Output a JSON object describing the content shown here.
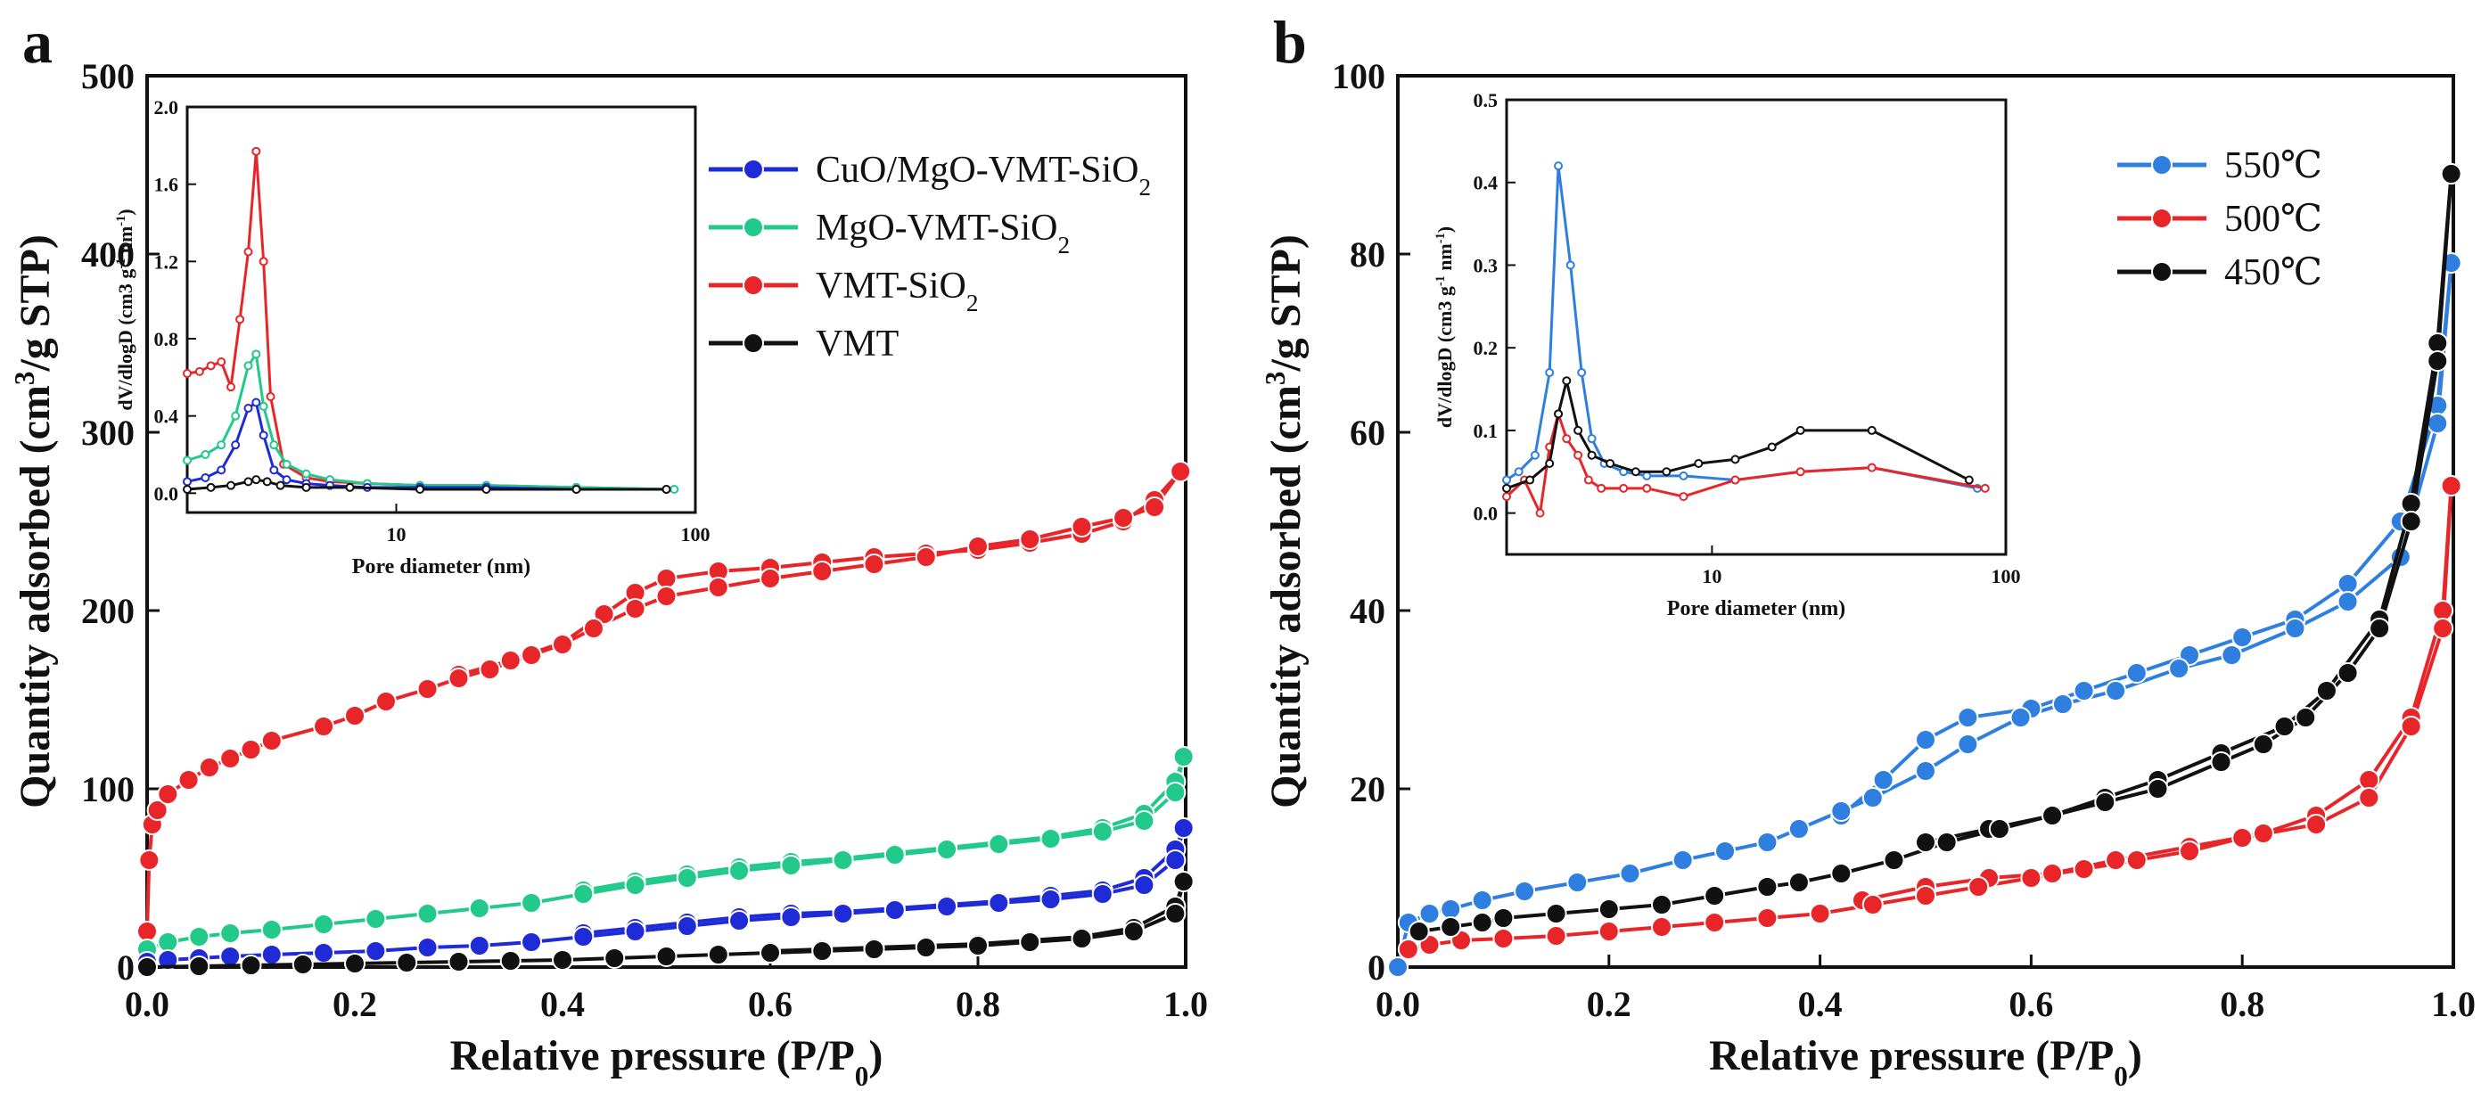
{
  "chart_data": [
    {
      "panel_label": "a",
      "type": "line",
      "xlabel": "Relative pressure (P/P",
      "xlabel_sub": "0",
      "xlabel_end": ")",
      "ylabel": "Quantity adsorbed (cm",
      "ylabel_sup": "3",
      "ylabel_end": "/g STP)",
      "xlim": [
        0,
        1.0
      ],
      "ylim": [
        0,
        500
      ],
      "xticks": [
        "0.0",
        "0.2",
        "0.4",
        "0.6",
        "0.8",
        "1.0"
      ],
      "yticks": [
        "0",
        "100",
        "200",
        "300",
        "400",
        "500"
      ],
      "legend": [
        {
          "label": "CuO/MgO-VMT-SiO",
          "sub": "2",
          "color": "#1f2bd6"
        },
        {
          "label": "MgO-VMT-SiO",
          "sub": "2",
          "color": "#21c98a"
        },
        {
          "label": "VMT-SiO",
          "sub": "2",
          "color": "#e8262a"
        },
        {
          "label": "VMT",
          "sub": "",
          "color": "#111111"
        }
      ],
      "series": [
        {
          "name": "VMT-SiO2",
          "color": "#e8262a",
          "x": [
            0,
            0.002,
            0.005,
            0.01,
            0.02,
            0.04,
            0.06,
            0.08,
            0.1,
            0.12,
            0.17,
            0.2,
            0.23,
            0.27,
            0.3,
            0.33,
            0.37,
            0.4,
            0.43,
            0.47,
            0.5,
            0.55,
            0.6,
            0.65,
            0.7,
            0.75,
            0.8,
            0.85,
            0.9,
            0.94,
            0.97,
            0.995
          ],
          "y": [
            20,
            60,
            80,
            88,
            97,
            105,
            112,
            117,
            122,
            127,
            135,
            141,
            149,
            156,
            162,
            167,
            175,
            181,
            190,
            201,
            208,
            213,
            218,
            222,
            226,
            230,
            236,
            240,
            247,
            252,
            258,
            278
          ],
          "x2": [
            0.995,
            0.97,
            0.94,
            0.9,
            0.85,
            0.8,
            0.75,
            0.7,
            0.65,
            0.6,
            0.55,
            0.5,
            0.47,
            0.44,
            0.4,
            0.35,
            0.3
          ],
          "y2": [
            278,
            262,
            250,
            243,
            238,
            234,
            232,
            230,
            227,
            224,
            222,
            218,
            210,
            198,
            182,
            172,
            164
          ]
        },
        {
          "name": "MgO-VMT-SiO2",
          "color": "#21c98a",
          "x": [
            0,
            0.02,
            0.05,
            0.08,
            0.12,
            0.17,
            0.22,
            0.27,
            0.32,
            0.37,
            0.42,
            0.47,
            0.52,
            0.57,
            0.62,
            0.67,
            0.72,
            0.77,
            0.82,
            0.87,
            0.92,
            0.96,
            0.99,
            0.998
          ],
          "y": [
            10,
            14,
            17,
            19,
            21,
            24,
            27,
            30,
            33,
            36,
            41,
            46,
            50,
            54,
            57,
            60,
            63,
            66,
            69,
            72,
            76,
            82,
            98,
            118
          ],
          "x2": [
            0.998,
            0.99,
            0.96,
            0.92,
            0.87,
            0.82,
            0.77,
            0.72,
            0.67,
            0.62,
            0.57,
            0.52,
            0.47,
            0.42
          ],
          "y2": [
            118,
            104,
            86,
            78,
            73,
            70,
            67,
            64,
            61,
            59,
            56,
            52,
            48,
            43
          ]
        },
        {
          "name": "CuO/MgO-VMT-SiO2",
          "color": "#1f2bd6",
          "x": [
            0,
            0.02,
            0.05,
            0.08,
            0.12,
            0.17,
            0.22,
            0.27,
            0.32,
            0.37,
            0.42,
            0.47,
            0.52,
            0.57,
            0.62,
            0.67,
            0.72,
            0.77,
            0.82,
            0.87,
            0.92,
            0.96,
            0.99,
            0.998
          ],
          "y": [
            3,
            4,
            5,
            6,
            7,
            8,
            9,
            11,
            12,
            14,
            17,
            20,
            23,
            26,
            28,
            30,
            32,
            34,
            36,
            38,
            41,
            46,
            60,
            78
          ],
          "x2": [
            0.998,
            0.99,
            0.96,
            0.92,
            0.87,
            0.82,
            0.77,
            0.72,
            0.67,
            0.62,
            0.57,
            0.52,
            0.47,
            0.42
          ],
          "y2": [
            78,
            66,
            50,
            43,
            40,
            37,
            35,
            33,
            31,
            30,
            28,
            25,
            22,
            19
          ]
        },
        {
          "name": "VMT",
          "color": "#111111",
          "x": [
            0,
            0.05,
            0.1,
            0.15,
            0.2,
            0.25,
            0.3,
            0.35,
            0.4,
            0.45,
            0.5,
            0.55,
            0.6,
            0.65,
            0.7,
            0.75,
            0.8,
            0.85,
            0.9,
            0.95,
            0.99,
            0.998
          ],
          "y": [
            0,
            0.5,
            1,
            1.5,
            2,
            2.5,
            3,
            3.5,
            4,
            5,
            6,
            7,
            8,
            9,
            10,
            11,
            12,
            14,
            16,
            20,
            30,
            48
          ],
          "x2": [
            0.998,
            0.99,
            0.95,
            0.9,
            0.85,
            0.8,
            0.75,
            0.7,
            0.65,
            0.6
          ],
          "y2": [
            48,
            34,
            22,
            17,
            15,
            13,
            12,
            11,
            10,
            9
          ]
        }
      ],
      "inset": {
        "xlabel": "Pore diameter (nm)",
        "ylabel": "dV/dlogD (cm3 g",
        "ylabel_sup": "-1",
        "ylabel_mid": " nm",
        "ylabel_sup2": "-1",
        "ylabel_end": ")",
        "xscale": "log",
        "xlim": [
          2,
          100
        ],
        "ylim": [
          -0.1,
          2.0
        ],
        "xticks": [
          "10",
          "100"
        ],
        "yticks": [
          "0.0",
          "0.4",
          "0.8",
          "1.2",
          "1.6",
          "2.0"
        ],
        "series": [
          {
            "name": "VMT-SiO2",
            "color": "#e8262a",
            "x": [
              2,
              2.2,
              2.4,
              2.6,
              2.8,
              3.0,
              3.2,
              3.4,
              3.6,
              3.8,
              4.2,
              5,
              6,
              8,
              12,
              20,
              40,
              80
            ],
            "y": [
              0.62,
              0.63,
              0.66,
              0.68,
              0.55,
              0.9,
              1.25,
              1.77,
              1.2,
              0.5,
              0.15,
              0.08,
              0.06,
              0.05,
              0.04,
              0.04,
              0.03,
              0.02
            ]
          },
          {
            "name": "MgO-VMT-SiO2",
            "color": "#21c98a",
            "x": [
              2,
              2.3,
              2.6,
              2.9,
              3.2,
              3.4,
              3.6,
              3.9,
              4.3,
              5,
              6,
              8,
              12,
              20,
              40,
              85
            ],
            "y": [
              0.17,
              0.2,
              0.25,
              0.4,
              0.66,
              0.72,
              0.45,
              0.25,
              0.15,
              0.1,
              0.07,
              0.05,
              0.04,
              0.04,
              0.03,
              0.02
            ]
          },
          {
            "name": "CuO/MgO-VMT-SiO2",
            "color": "#1f2bd6",
            "x": [
              2,
              2.3,
              2.6,
              2.9,
              3.2,
              3.4,
              3.6,
              3.9,
              4.3,
              5,
              6,
              8,
              12,
              20,
              40,
              80
            ],
            "y": [
              0.06,
              0.08,
              0.12,
              0.25,
              0.44,
              0.47,
              0.3,
              0.12,
              0.07,
              0.05,
              0.04,
              0.03,
              0.03,
              0.03,
              0.02,
              0.02
            ]
          },
          {
            "name": "VMT",
            "color": "#111111",
            "x": [
              2,
              2.4,
              2.8,
              3.2,
              3.4,
              3.7,
              4.1,
              5,
              7,
              12,
              20,
              40,
              80
            ],
            "y": [
              0.02,
              0.03,
              0.04,
              0.06,
              0.07,
              0.06,
              0.04,
              0.03,
              0.03,
              0.02,
              0.02,
              0.02,
              0.02
            ]
          }
        ]
      }
    },
    {
      "panel_label": "b",
      "type": "line",
      "xlabel": "Relative pressure (P/P",
      "xlabel_sub": "0",
      "xlabel_end": ")",
      "ylabel": "Quantity adsorbed (cm",
      "ylabel_sup": "3",
      "ylabel_end": "/g STP)",
      "xlim": [
        0,
        1.0
      ],
      "ylim": [
        0,
        100
      ],
      "xticks": [
        "0.0",
        "0.2",
        "0.4",
        "0.6",
        "0.8",
        "1.0"
      ],
      "yticks": [
        "0",
        "20",
        "40",
        "60",
        "80",
        "100"
      ],
      "legend": [
        {
          "label": "550℃",
          "sub": "",
          "color": "#2f7fe0"
        },
        {
          "label": "500℃",
          "sub": "",
          "color": "#e8262a"
        },
        {
          "label": "450℃",
          "sub": "",
          "color": "#111111"
        }
      ],
      "series": [
        {
          "name": "550℃",
          "color": "#2f7fe0",
          "x": [
            0,
            0.01,
            0.03,
            0.05,
            0.08,
            0.12,
            0.17,
            0.22,
            0.27,
            0.31,
            0.35,
            0.38,
            0.42,
            0.45,
            0.5,
            0.54,
            0.59,
            0.63,
            0.68,
            0.74,
            0.79,
            0.85,
            0.9,
            0.95,
            0.985,
            0.998
          ],
          "y": [
            0,
            5,
            6,
            6.5,
            7.5,
            8.5,
            9.5,
            10.5,
            12,
            13,
            14,
            15.5,
            17.5,
            19,
            22,
            25,
            28,
            29.5,
            31,
            33.5,
            35,
            38,
            41,
            46,
            61,
            79
          ],
          "x2": [
            0.998,
            0.985,
            0.95,
            0.9,
            0.85,
            0.8,
            0.75,
            0.7,
            0.65,
            0.6,
            0.54,
            0.5,
            0.46,
            0.42
          ],
          "y2": [
            79,
            63,
            50,
            43,
            39,
            37,
            35,
            33,
            31,
            29,
            28,
            25.5,
            21,
            17
          ]
        },
        {
          "name": "500℃",
          "color": "#e8262a",
          "x": [
            0.01,
            0.03,
            0.06,
            0.1,
            0.15,
            0.2,
            0.25,
            0.3,
            0.35,
            0.4,
            0.45,
            0.5,
            0.55,
            0.6,
            0.65,
            0.7,
            0.75,
            0.8,
            0.87,
            0.92,
            0.96,
            0.99,
            0.998
          ],
          "y": [
            2,
            2.5,
            3,
            3.2,
            3.5,
            4,
            4.5,
            5,
            5.5,
            6,
            7,
            8,
            9,
            10,
            11,
            12,
            13,
            14.5,
            16,
            19,
            27,
            38,
            54
          ],
          "x2": [
            0.998,
            0.99,
            0.96,
            0.92,
            0.87,
            0.82,
            0.75,
            0.68,
            0.62,
            0.56,
            0.5,
            0.44
          ],
          "y2": [
            54,
            40,
            28,
            21,
            17,
            15,
            13.5,
            12,
            10.5,
            10,
            9,
            7.5
          ]
        },
        {
          "name": "450℃",
          "color": "#111111",
          "x": [
            0.02,
            0.05,
            0.08,
            0.1,
            0.15,
            0.2,
            0.25,
            0.3,
            0.35,
            0.38,
            0.42,
            0.47,
            0.52,
            0.57,
            0.62,
            0.67,
            0.72,
            0.78,
            0.82,
            0.86,
            0.9,
            0.93,
            0.96,
            0.985,
            0.998
          ],
          "y": [
            4,
            4.5,
            5,
            5.5,
            6,
            6.5,
            7,
            8,
            9,
            9.5,
            10.5,
            12,
            14,
            15.5,
            17,
            18.5,
            20,
            23,
            25,
            28,
            33,
            38,
            50,
            68,
            89
          ],
          "x2": [
            0.998,
            0.985,
            0.96,
            0.93,
            0.88,
            0.84,
            0.78,
            0.72,
            0.67,
            0.62,
            0.56,
            0.5
          ],
          "y2": [
            89,
            70,
            52,
            39,
            31,
            27,
            24,
            21,
            19,
            17,
            15.5,
            14
          ]
        }
      ],
      "inset": {
        "xlabel": "Pore diameter (nm)",
        "ylabel": "dV/dlogD (cm3 g",
        "ylabel_sup": "-1",
        "ylabel_mid": " nm",
        "ylabel_sup2": "-1",
        "ylabel_end": ")",
        "xscale": "log",
        "xlim": [
          2,
          100
        ],
        "ylim": [
          -0.05,
          0.5
        ],
        "xticks": [
          "10",
          "100"
        ],
        "yticks": [
          "0.0",
          "0.1",
          "0.2",
          "0.3",
          "0.4",
          "0.5"
        ],
        "series": [
          {
            "name": "550℃",
            "color": "#2f7fe0",
            "x": [
              2,
              2.2,
              2.5,
              2.8,
              3.0,
              3.3,
              3.6,
              3.9,
              4.3,
              5,
              6,
              8,
              12,
              20,
              35,
              80
            ],
            "y": [
              0.04,
              0.05,
              0.07,
              0.17,
              0.42,
              0.3,
              0.17,
              0.09,
              0.06,
              0.05,
              0.045,
              0.045,
              0.04,
              0.05,
              0.055,
              0.03
            ]
          },
          {
            "name": "500℃",
            "color": "#e8262a",
            "x": [
              2,
              2.3,
              2.6,
              2.8,
              3.0,
              3.2,
              3.5,
              3.8,
              4.2,
              5,
              6,
              8,
              12,
              20,
              35,
              85
            ],
            "y": [
              0.02,
              0.04,
              0.0,
              0.08,
              0.12,
              0.09,
              0.07,
              0.04,
              0.03,
              0.03,
              0.03,
              0.02,
              0.04,
              0.05,
              0.055,
              0.03
            ]
          },
          {
            "name": "450℃",
            "color": "#111111",
            "x": [
              2,
              2.4,
              2.8,
              3.0,
              3.2,
              3.5,
              3.9,
              4.5,
              5.5,
              7,
              9,
              12,
              16,
              20,
              35,
              75
            ],
            "y": [
              0.03,
              0.04,
              0.06,
              0.12,
              0.16,
              0.1,
              0.07,
              0.06,
              0.05,
              0.05,
              0.06,
              0.065,
              0.08,
              0.1,
              0.1,
              0.04
            ]
          }
        ]
      }
    }
  ]
}
